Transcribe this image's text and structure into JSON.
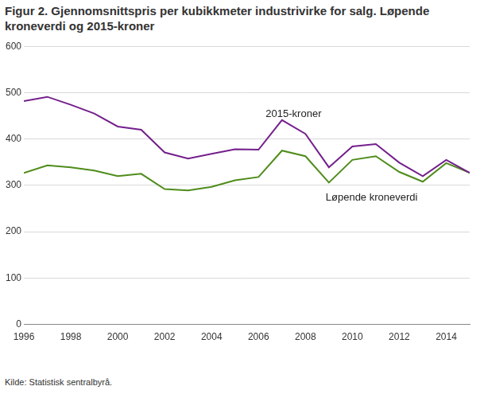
{
  "chart_data": {
    "type": "line",
    "title": "Figur 2. Gjennomsnittspris per kubikkmeter industrivirke for salg. Løpende kroneverdi og 2015-kroner",
    "source": "Kilde: Statistisk sentralbyrå.",
    "x": [
      1996,
      1997,
      1998,
      1999,
      2000,
      2001,
      2002,
      2003,
      2004,
      2005,
      2006,
      2007,
      2008,
      2009,
      2010,
      2011,
      2012,
      2013,
      2014,
      2015
    ],
    "series": [
      {
        "name": "2015-kroner",
        "color": "#74208c",
        "values": [
          482,
          491,
          474,
          455,
          427,
          420,
          371,
          358,
          368,
          378,
          377,
          441,
          411,
          339,
          384,
          389,
          349,
          320,
          355,
          327
        ]
      },
      {
        "name": "Løpende kroneverdi",
        "color": "#4f8c1b",
        "values": [
          327,
          343,
          339,
          332,
          320,
          325,
          292,
          289,
          297,
          311,
          318,
          375,
          363,
          306,
          355,
          363,
          329,
          308,
          348,
          327
        ]
      }
    ],
    "xlim": [
      1996,
      2015
    ],
    "xticks": [
      1996,
      1998,
      2000,
      2002,
      2004,
      2006,
      2008,
      2010,
      2012,
      2014
    ],
    "ylim": [
      0,
      600
    ],
    "yticks": [
      0,
      100,
      200,
      300,
      400,
      500,
      600
    ],
    "grid": true
  }
}
